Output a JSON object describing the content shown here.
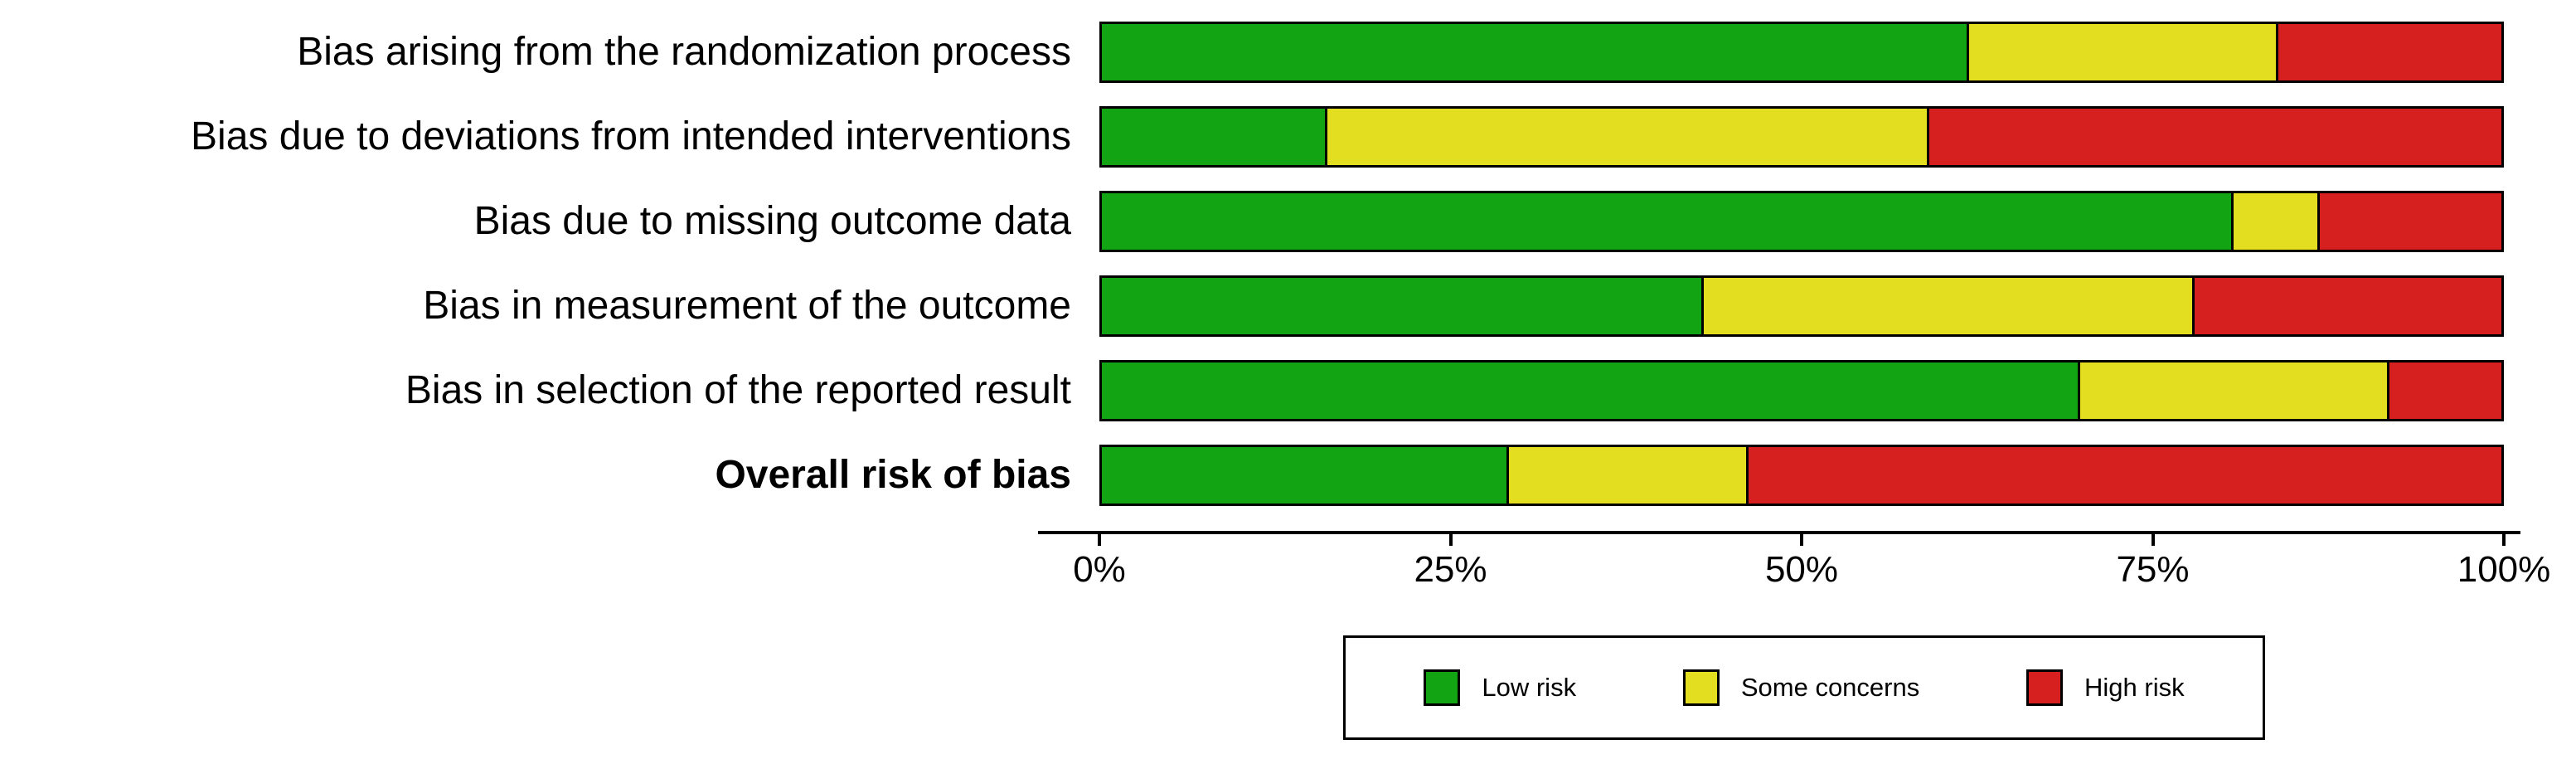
{
  "chart_data": {
    "type": "bar",
    "orientation": "horizontal_stacked",
    "title": "",
    "xlabel": "",
    "ylabel": "",
    "xlim": [
      0,
      100
    ],
    "grid": false,
    "legend_position": "bottom",
    "categories": [
      "Bias arising from the randomization process",
      "Bias due to deviations from intended interventions",
      "Bias due to missing outcome data",
      "Bias in measurement of the outcome",
      "Bias in selection of the reported result",
      "Overall risk of bias"
    ],
    "bold_categories": [
      "Overall risk of bias"
    ],
    "series": [
      {
        "name": "Low risk",
        "color": "#12a412",
        "values": [
          62,
          16,
          81,
          43,
          70,
          29
        ]
      },
      {
        "name": "Some concerns",
        "color": "#e4de20",
        "values": [
          22,
          43,
          6,
          35,
          22,
          17
        ]
      },
      {
        "name": "High risk",
        "color": "#d6201f",
        "values": [
          16,
          41,
          13,
          22,
          8,
          54
        ]
      }
    ],
    "x_ticks": [
      "0%",
      "25%",
      "50%",
      "75%",
      "100%"
    ],
    "colors": {
      "low_risk": "#12a412",
      "some_concerns": "#e4de20",
      "high_risk": "#d6201f",
      "outline": "#000000",
      "background": "#ffffff"
    }
  }
}
